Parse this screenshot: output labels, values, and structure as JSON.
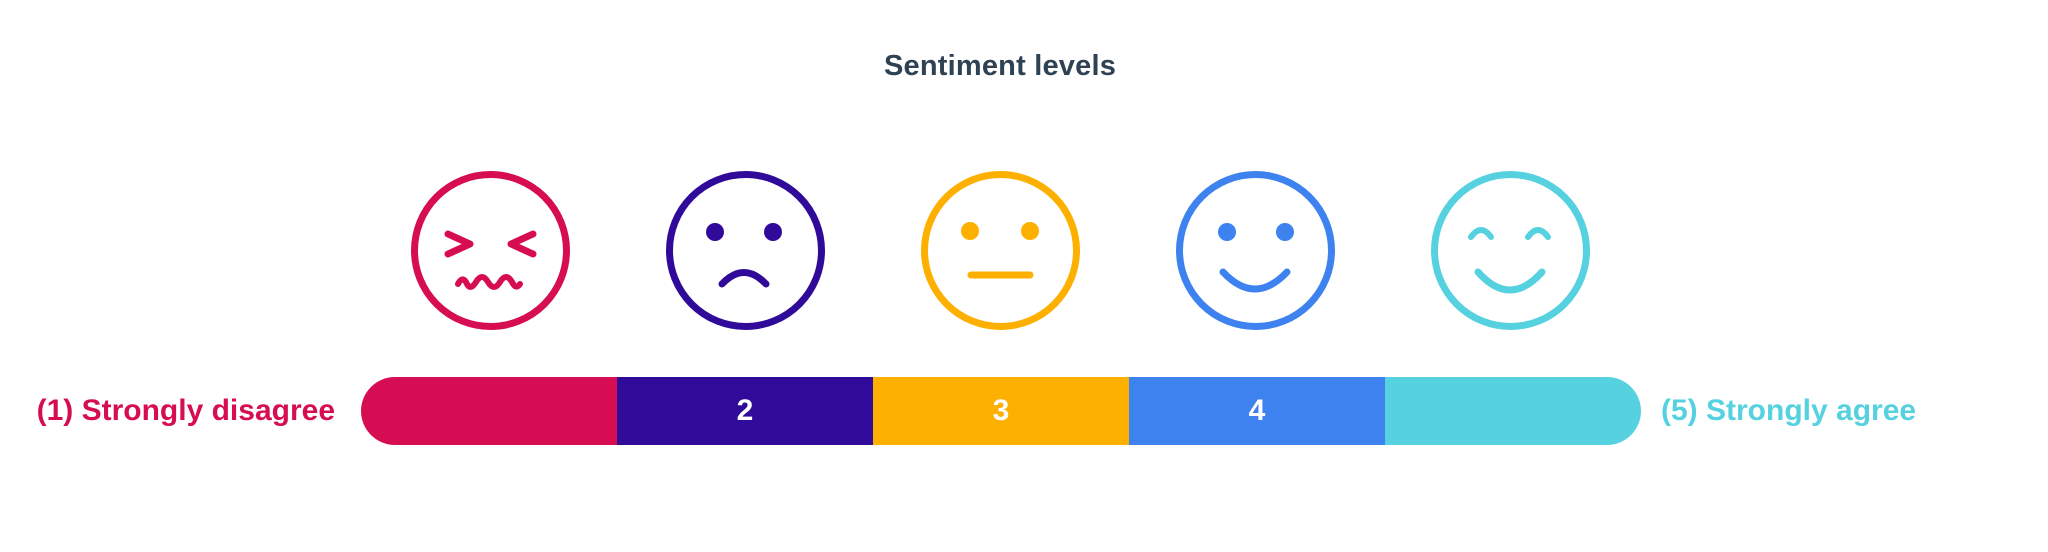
{
  "title": "Sentiment levels",
  "scale": {
    "levels": [
      {
        "label": "",
        "color": "#d60d52",
        "face": "anguished-face-icon"
      },
      {
        "label": "2",
        "color": "#300b99",
        "face": "frowning-face-icon"
      },
      {
        "label": "3",
        "color": "#fdb000",
        "face": "neutral-face-icon"
      },
      {
        "label": "4",
        "color": "#3d82ef",
        "face": "smiling-face-icon"
      },
      {
        "label": "",
        "color": "#55d1df",
        "face": "happy-face-icon"
      }
    ],
    "left_label": "(1) Strongly disagree",
    "right_label": "(5) Strongly agree"
  }
}
